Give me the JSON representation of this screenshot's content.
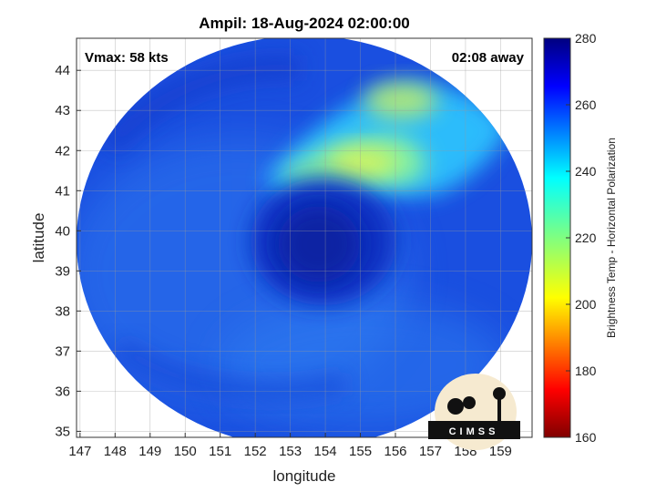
{
  "chart_data": {
    "type": "heatmap",
    "title": "Ampil: 18-Aug-2024 02:00:00",
    "xlabel": "longitude",
    "ylabel": "latitude",
    "xlim": [
      146.9,
      159.9
    ],
    "ylim": [
      34.85,
      44.8
    ],
    "x_ticks": [
      147,
      148,
      149,
      150,
      151,
      152,
      153,
      154,
      155,
      156,
      157,
      158,
      159
    ],
    "y_ticks": [
      35,
      36,
      37,
      38,
      39,
      40,
      41,
      42,
      43,
      44
    ],
    "grid": true,
    "annotations": {
      "vmax": "Vmax: 58 kts",
      "time_away": "02:08 away"
    },
    "colorbar": {
      "label": "Brightness Temp - Horizontal Polarization",
      "min": 160,
      "max": 280,
      "ticks": [
        160,
        180,
        200,
        220,
        240,
        260,
        280
      ],
      "colormap": "jet"
    },
    "swath": {
      "center_lon": 153.5,
      "center_lat": 39.8,
      "storm_center_lon": 153.9,
      "storm_center_lat": 39.8,
      "min_value_region": {
        "lon": 155.0,
        "lat": 41.9,
        "value": 228
      },
      "background_value": 258
    },
    "logo_text": "CIMSS"
  }
}
